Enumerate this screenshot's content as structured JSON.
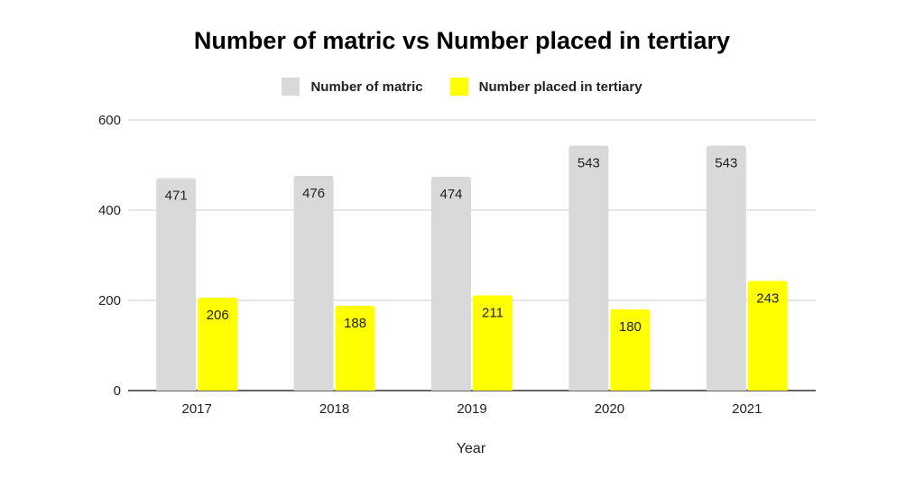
{
  "chart_data": {
    "type": "bar",
    "title": "Number of matric vs Number placed in tertiary",
    "xlabel": "Year",
    "ylabel": "",
    "categories": [
      "2017",
      "2018",
      "2019",
      "2020",
      "2021"
    ],
    "series": [
      {
        "name": "Number of matric",
        "values": [
          471,
          476,
          474,
          543,
          543
        ],
        "color": "#d9d9d9"
      },
      {
        "name": "Number placed in tertiary",
        "values": [
          206,
          188,
          211,
          180,
          243
        ],
        "color": "#ffff00"
      }
    ],
    "ylim": [
      0,
      600
    ],
    "yticks": [
      "0",
      "200",
      "400",
      "600"
    ],
    "grid": true,
    "legend_position": "top",
    "data_labels": true
  }
}
